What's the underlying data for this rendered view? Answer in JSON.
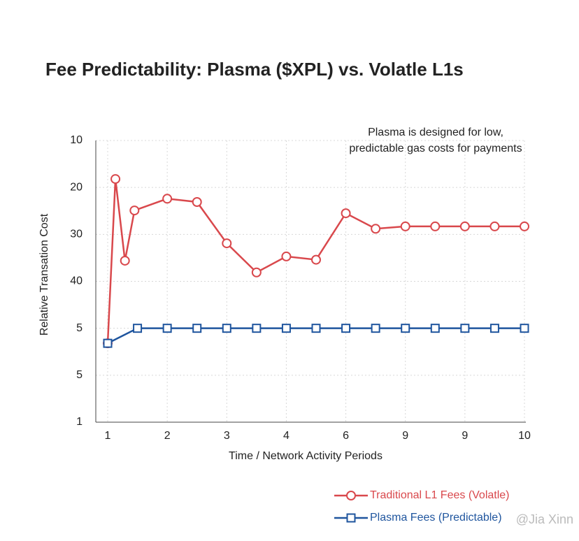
{
  "chart_data": {
    "type": "line",
    "title": "Fee Predictability: Plasma ($XPL) vs. Volatle L1s",
    "annotation": [
      "Plasma is designed for low,",
      "predictable gas costs for payments"
    ],
    "x_label": "Time / Network Activity Periods",
    "y_label": "Relative Transation Cost",
    "xlim": [
      1,
      8
    ],
    "xticks": [
      1,
      2,
      3,
      4,
      {
        "value": 5,
        "label": "6"
      },
      {
        "value": 6,
        "label": "9"
      },
      {
        "value": 7,
        "label": "9"
      },
      {
        "value": 8,
        "label": "10"
      }
    ],
    "ylim": [
      10,
      70
    ],
    "y_inverted": true,
    "yticks": [
      10,
      20,
      30,
      40,
      {
        "value": 50,
        "label": "5"
      },
      {
        "value": 60,
        "label": "5"
      },
      {
        "value": 70,
        "label": "1"
      }
    ],
    "grid": true,
    "series": [
      {
        "name": "Traditional L1 Fees (Volatle)",
        "color": "#d9484c",
        "marker": "circle",
        "x": [
          1,
          1.13,
          1.29,
          1.45,
          2,
          2.5,
          3,
          3.5,
          4,
          4.5,
          5,
          5.5,
          6,
          6.5,
          7,
          7.5,
          8
        ],
        "values": [
          53.2,
          18.2,
          35.6,
          24.9,
          22.4,
          23.1,
          31.9,
          38.1,
          34.7,
          35.4,
          25.5,
          28.8,
          28.3,
          28.3,
          28.3,
          28.3,
          28.3
        ]
      },
      {
        "name": "Plasma Fees (Predictable)",
        "color": "#1f559e",
        "marker": "square",
        "x": [
          1,
          1.5,
          2,
          2.5,
          3,
          3.5,
          4,
          4.5,
          5,
          5.5,
          6,
          6.5,
          7,
          7.5,
          8
        ],
        "values": [
          53.2,
          50,
          50,
          50,
          50,
          50,
          50,
          50,
          50,
          50,
          50,
          50,
          50,
          50,
          50
        ]
      }
    ],
    "watermark": "@Jia Xinn"
  }
}
